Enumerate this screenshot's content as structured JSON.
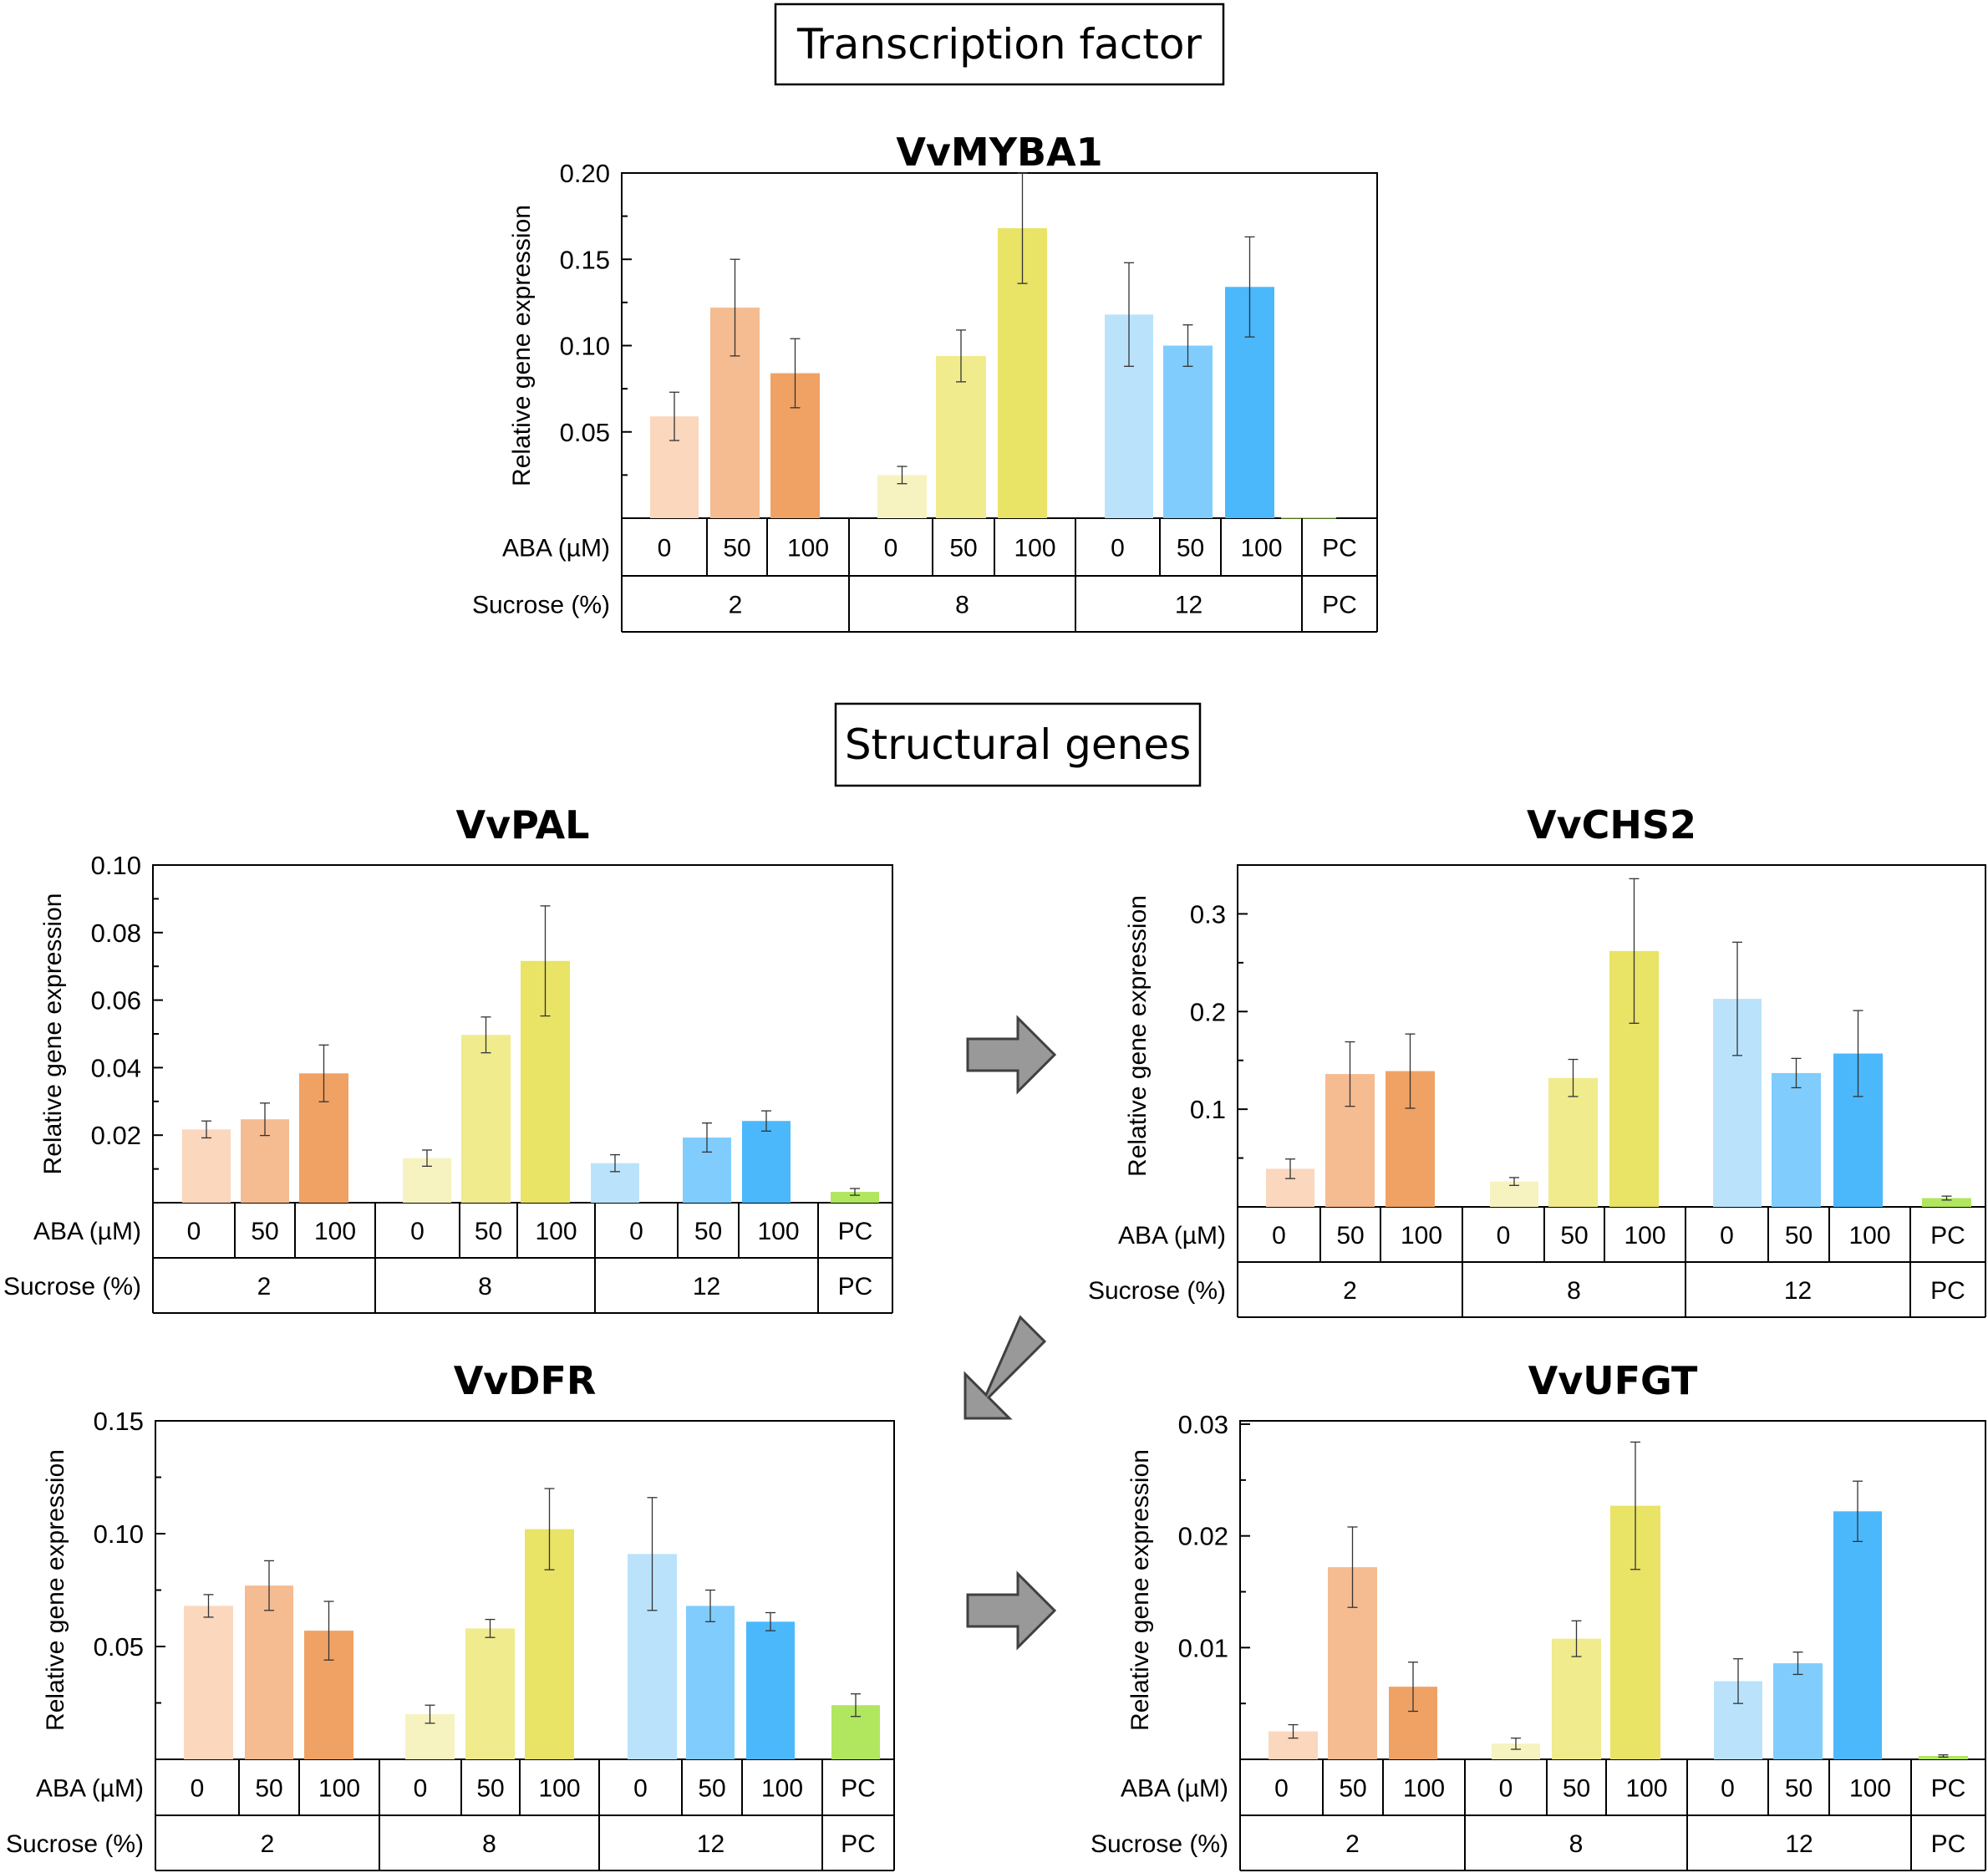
{
  "section_titles": {
    "transcription": "Transcription factor",
    "structural": "Structural genes"
  },
  "colors": {
    "s2": [
      "#FAD7BD",
      "#F5BB91",
      "#F0A264"
    ],
    "s8": [
      "#F6F3C0",
      "#F0EB8D",
      "#E9E366"
    ],
    "s12": [
      "#BAE3FB",
      "#80CDFD",
      "#4CB8FC"
    ],
    "pc": "#B1E65F",
    "arrow": "#999999"
  },
  "table_labels": {
    "aba_label": "ABA (µM)",
    "sucrose_label": "Sucrose (%)",
    "aba_values": [
      "0",
      "50",
      "100",
      "0",
      "50",
      "100",
      "0",
      "50",
      "100",
      "PC"
    ],
    "sucrose_groups": [
      "2",
      "8",
      "12",
      "PC"
    ]
  },
  "chart_data": [
    {
      "type": "bar",
      "title": "VvMYBA1",
      "ylabel": "Relative gene expression",
      "xlabel": "",
      "ylim": [
        0,
        0.2
      ],
      "yticks": [
        0.05,
        0.1,
        0.15,
        0.2
      ],
      "ytick_labels": [
        "0.05",
        "0.10",
        "0.15",
        "0.20"
      ],
      "categories": [
        "2% / 0",
        "2% / 50",
        "2% / 100",
        "8% / 0",
        "8% / 50",
        "8% / 100",
        "12% / 0",
        "12% / 50",
        "12% / 100",
        "PC"
      ],
      "values": [
        0.059,
        0.122,
        0.084,
        0.025,
        0.094,
        0.168,
        0.118,
        0.1,
        0.134,
        0.0005
      ],
      "errors": [
        0.014,
        0.028,
        0.02,
        0.005,
        0.015,
        0.032,
        0.03,
        0.012,
        0.029,
        0.0
      ]
    },
    {
      "type": "bar",
      "title": "VvPAL",
      "ylabel": "Relative gene expression",
      "xlabel": "",
      "ylim": [
        0,
        0.1
      ],
      "yticks": [
        0.02,
        0.04,
        0.06,
        0.08,
        0.1
      ],
      "ytick_labels": [
        "0.02",
        "0.04",
        "0.06",
        "0.08",
        "0.10"
      ],
      "categories": [
        "2% / 0",
        "2% / 50",
        "2% / 100",
        "8% / 0",
        "8% / 50",
        "8% / 100",
        "12% / 0",
        "12% / 50",
        "12% / 100",
        "PC"
      ],
      "values": [
        0.0217,
        0.0247,
        0.0383,
        0.0132,
        0.0497,
        0.0716,
        0.0117,
        0.0193,
        0.0242,
        0.0032
      ],
      "errors": [
        0.0025,
        0.0048,
        0.0084,
        0.0024,
        0.0053,
        0.0163,
        0.0025,
        0.0043,
        0.003,
        0.001
      ]
    },
    {
      "type": "bar",
      "title": "VvCHS2",
      "ylabel": "Relative gene expression",
      "xlabel": "",
      "ylim": [
        0,
        0.35
      ],
      "yticks": [
        0.1,
        0.2,
        0.3
      ],
      "ytick_labels": [
        "0.1",
        "0.2",
        "0.3"
      ],
      "categories": [
        "2% / 0",
        "2% / 50",
        "2% / 100",
        "8% / 0",
        "8% / 50",
        "8% / 100",
        "12% / 0",
        "12% / 50",
        "12% / 100",
        "PC"
      ],
      "values": [
        0.039,
        0.136,
        0.139,
        0.026,
        0.132,
        0.262,
        0.213,
        0.137,
        0.157,
        0.009
      ],
      "errors": [
        0.01,
        0.033,
        0.038,
        0.004,
        0.019,
        0.074,
        0.058,
        0.015,
        0.044,
        0.002
      ]
    },
    {
      "type": "bar",
      "title": "VvDFR",
      "ylabel": "Relative gene expression",
      "xlabel": "",
      "ylim": [
        0,
        0.15
      ],
      "yticks": [
        0.05,
        0.1,
        0.15
      ],
      "ytick_labels": [
        "0.05",
        "0.10",
        "0.15"
      ],
      "categories": [
        "2% / 0",
        "2% / 50",
        "2% / 100",
        "8% / 0",
        "8% / 50",
        "8% / 100",
        "12% / 0",
        "12% / 50",
        "12% / 100",
        "PC"
      ],
      "values": [
        0.068,
        0.077,
        0.057,
        0.02,
        0.058,
        0.102,
        0.091,
        0.068,
        0.061,
        0.024
      ],
      "errors": [
        0.005,
        0.011,
        0.013,
        0.004,
        0.004,
        0.018,
        0.025,
        0.007,
        0.004,
        0.005
      ]
    },
    {
      "type": "bar",
      "title": "VvUFGT",
      "ylabel": "Relative gene expression",
      "xlabel": "",
      "ylim": [
        0,
        0.0303
      ],
      "yticks": [
        0.01,
        0.02,
        0.03
      ],
      "ytick_labels": [
        "0.01",
        "0.02",
        "0.03"
      ],
      "categories": [
        "2% / 0",
        "2% / 50",
        "2% / 100",
        "8% / 0",
        "8% / 50",
        "8% / 100",
        "12% / 0",
        "12% / 50",
        "12% / 100",
        "PC"
      ],
      "values": [
        0.0025,
        0.0172,
        0.0065,
        0.0014,
        0.0108,
        0.0227,
        0.007,
        0.0086,
        0.0222,
        0.0003
      ],
      "errors": [
        0.0006,
        0.0036,
        0.0022,
        0.0005,
        0.0016,
        0.0057,
        0.002,
        0.001,
        0.0027,
        0.0001
      ]
    }
  ]
}
